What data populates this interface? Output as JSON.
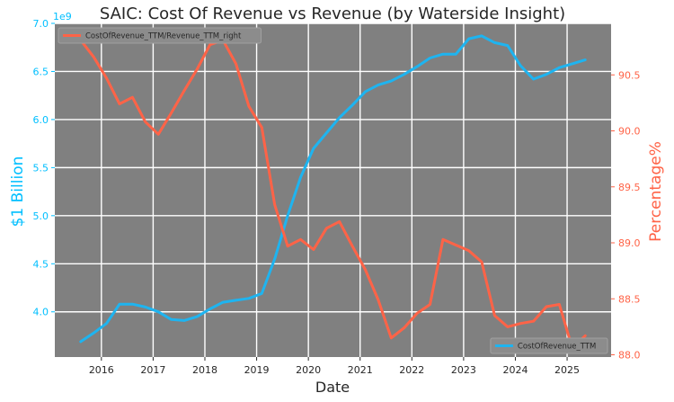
{
  "chart_data": {
    "type": "line",
    "title": "SAIC: Cost Of Revenue vs Revenue (by Waterside Insight)",
    "xlabel": "Date",
    "ylabel_left": "$1 Billion",
    "ylabel_right": "Percentage%",
    "left_axis_offset_text": "1e9",
    "xlim": [
      2015.1,
      2025.85
    ],
    "ylim_left": [
      3.53,
      7.0
    ],
    "ylim_right": [
      87.98,
      90.96
    ],
    "x_ticks": [
      2016,
      2017,
      2018,
      2019,
      2020,
      2021,
      2022,
      2023,
      2024,
      2025
    ],
    "left_ticks": [
      "4.0",
      "4.5",
      "5.0",
      "5.5",
      "6.0",
      "6.5",
      "7.0"
    ],
    "right_ticks": [
      "88.0",
      "88.5",
      "89.0",
      "89.5",
      "90.0",
      "90.5"
    ],
    "grid": true,
    "colors": {
      "left": "#00bfff",
      "right": "#ff6347",
      "plot_bg": "#808080",
      "grid": "#ffffff"
    },
    "series": [
      {
        "name": "CostOfRevenue_TTM",
        "axis": "left",
        "color": "#1eb4f0",
        "legend_position": "lower-right",
        "x": [
          2015.6,
          2015.85,
          2016.1,
          2016.35,
          2016.6,
          2016.85,
          2017.1,
          2017.35,
          2017.6,
          2017.85,
          2018.1,
          2018.35,
          2018.6,
          2018.85,
          2019.1,
          2019.35,
          2019.6,
          2019.85,
          2020.1,
          2020.35,
          2020.6,
          2020.85,
          2021.1,
          2021.35,
          2021.6,
          2021.85,
          2022.1,
          2022.35,
          2022.6,
          2022.85,
          2023.1,
          2023.35,
          2023.6,
          2023.85,
          2024.1,
          2024.35,
          2024.6,
          2024.85,
          2025.1,
          2025.35
        ],
        "values": [
          3.69,
          3.78,
          3.88,
          4.08,
          4.08,
          4.05,
          4.0,
          3.92,
          3.91,
          3.95,
          4.03,
          4.1,
          4.12,
          4.14,
          4.19,
          4.55,
          5.0,
          5.4,
          5.7,
          5.86,
          6.02,
          6.15,
          6.29,
          6.36,
          6.4,
          6.47,
          6.55,
          6.64,
          6.68,
          6.68,
          6.84,
          6.87,
          6.8,
          6.77,
          6.56,
          6.42,
          6.47,
          6.54,
          6.58,
          6.62
        ]
      },
      {
        "name": "CostOfRevenue_TTM/Revenue_TTM_right",
        "axis": "right",
        "color": "#ff6347",
        "legend_position": "upper-left",
        "x": [
          2015.6,
          2015.85,
          2016.1,
          2016.35,
          2016.6,
          2016.85,
          2017.1,
          2017.35,
          2017.6,
          2017.85,
          2018.1,
          2018.35,
          2018.6,
          2018.85,
          2019.1,
          2019.35,
          2019.6,
          2019.85,
          2020.1,
          2020.35,
          2020.6,
          2020.85,
          2021.1,
          2021.35,
          2021.6,
          2021.85,
          2022.1,
          2022.35,
          2022.6,
          2022.85,
          2023.1,
          2023.35,
          2023.6,
          2023.85,
          2024.1,
          2024.35,
          2024.6,
          2024.85,
          2025.1,
          2025.35
        ],
        "values": [
          90.81,
          90.66,
          90.47,
          90.24,
          90.3,
          90.08,
          89.97,
          90.16,
          90.36,
          90.55,
          90.77,
          90.81,
          90.6,
          90.22,
          90.03,
          89.34,
          88.97,
          89.03,
          88.94,
          89.13,
          89.19,
          88.97,
          88.76,
          88.49,
          88.15,
          88.24,
          88.37,
          88.45,
          89.03,
          88.98,
          88.93,
          88.83,
          88.35,
          88.25,
          88.28,
          88.3,
          88.43,
          88.45,
          88.06,
          88.17
        ]
      }
    ]
  }
}
